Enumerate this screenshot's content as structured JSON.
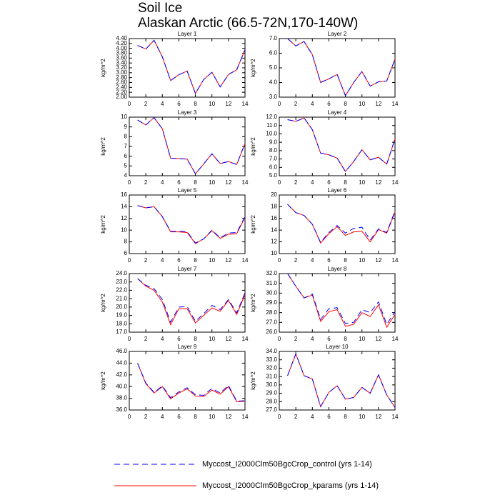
{
  "title": "Soil Ice",
  "subtitle": "Alaskan Arctic (66.5-72N,170-140W)",
  "legend": [
    {
      "name": "Myccost_I2000Clm50BgcCrop_control (yrs 1-14)",
      "color": "#0000ff",
      "style": "dashed"
    },
    {
      "name": "Myccost_I2000Clm50BgcCrop_kparams (yrs 1-14)",
      "color": "#ff0000",
      "style": "solid"
    }
  ],
  "chart_data": [
    {
      "type": "line",
      "title": "Layer 1",
      "y_label": "kg/m^2",
      "x": [
        1,
        2,
        3,
        4,
        5,
        6,
        7,
        8,
        9,
        10,
        11,
        12,
        13,
        14
      ],
      "xlim": [
        0,
        14
      ],
      "xticks": [
        0,
        2,
        4,
        6,
        8,
        10,
        12,
        14
      ],
      "ylim": [
        2,
        4.4
      ],
      "yticks": [
        {
          "value": 2,
          "label": "2.00"
        },
        {
          "value": 2.2,
          "label": "2.20"
        },
        {
          "value": 2.4,
          "label": "2.40"
        },
        {
          "value": 2.6,
          "label": "2.60"
        },
        {
          "value": 2.8,
          "label": "2.80"
        },
        {
          "value": 3,
          "label": "3.00"
        },
        {
          "value": 3.2,
          "label": "3.20"
        },
        {
          "value": 3.4,
          "label": "3.40"
        },
        {
          "value": 3.6,
          "label": "3.60"
        },
        {
          "value": 3.8,
          "label": "3.80"
        },
        {
          "value": 4,
          "label": "4.00"
        },
        {
          "value": 4.2,
          "label": "4.20"
        },
        {
          "value": 4.4,
          "label": "4.40"
        }
      ],
      "series": [
        {
          "values": [
            4.12,
            3.97,
            4.33,
            3.65,
            2.68,
            2.92,
            3.07,
            2.15,
            2.72,
            3.02,
            2.42,
            2.93,
            3.12,
            3.95
          ]
        },
        {
          "values": [
            4.12,
            3.97,
            4.33,
            3.65,
            2.68,
            2.92,
            3.07,
            2.15,
            2.72,
            3.02,
            2.42,
            2.93,
            3.12,
            3.95
          ]
        }
      ]
    },
    {
      "type": "line",
      "title": "Layer 2",
      "y_label": "kg/m^2",
      "x": [
        1,
        2,
        3,
        4,
        5,
        6,
        7,
        8,
        9,
        10,
        11,
        12,
        13,
        14
      ],
      "xlim": [
        0,
        14
      ],
      "xticks": [
        0,
        2,
        4,
        6,
        8,
        10,
        12,
        14
      ],
      "ylim": [
        3,
        7
      ],
      "yticks": [
        {
          "value": 3,
          "label": "3.0"
        },
        {
          "value": 4,
          "label": "4.0"
        },
        {
          "value": 5,
          "label": "5.0"
        },
        {
          "value": 6,
          "label": "6.0"
        },
        {
          "value": 7,
          "label": "7.0"
        }
      ],
      "series": [
        {
          "values": [
            7.0,
            6.5,
            6.8,
            5.9,
            4.0,
            4.25,
            4.55,
            3.1,
            4.0,
            4.75,
            3.75,
            4.05,
            4.1,
            5.6
          ]
        },
        {
          "values": [
            7.0,
            6.5,
            6.8,
            5.9,
            4.0,
            4.25,
            4.55,
            3.1,
            4.0,
            4.75,
            3.75,
            4.05,
            4.1,
            5.6
          ]
        }
      ]
    },
    {
      "type": "line",
      "title": "Layer 3",
      "y_label": "kg/m^2",
      "x": [
        1,
        2,
        3,
        4,
        5,
        6,
        7,
        8,
        9,
        10,
        11,
        12,
        13,
        14
      ],
      "xlim": [
        0,
        14
      ],
      "xticks": [
        0,
        2,
        4,
        6,
        8,
        10,
        12,
        14
      ],
      "ylim": [
        4,
        10
      ],
      "yticks": [
        4,
        5,
        6,
        7,
        8,
        9,
        10
      ],
      "series": [
        {
          "values": [
            9.7,
            9.2,
            9.95,
            8.8,
            5.8,
            5.75,
            5.7,
            4.2,
            5.2,
            6.25,
            5.25,
            5.45,
            5.15,
            7.3
          ]
        },
        {
          "values": [
            9.7,
            9.2,
            9.95,
            8.8,
            5.8,
            5.75,
            5.7,
            4.2,
            5.2,
            6.25,
            5.25,
            5.45,
            5.15,
            7.3
          ]
        }
      ]
    },
    {
      "type": "line",
      "title": "Layer 4",
      "y_label": "kg/m^2",
      "x": [
        1,
        2,
        3,
        4,
        5,
        6,
        7,
        8,
        9,
        10,
        11,
        12,
        13,
        14
      ],
      "xlim": [
        0,
        14
      ],
      "xticks": [
        0,
        2,
        4,
        6,
        8,
        10,
        12,
        14
      ],
      "ylim": [
        5,
        12
      ],
      "yticks": [
        {
          "value": 5,
          "label": "5.0"
        },
        {
          "value": 6,
          "label": "6.0"
        },
        {
          "value": 7,
          "label": "7.0"
        },
        {
          "value": 8,
          "label": "8.0"
        },
        {
          "value": 9,
          "label": "9.0"
        },
        {
          "value": 10,
          "label": "10.0"
        },
        {
          "value": 11,
          "label": "11.0"
        },
        {
          "value": 12,
          "label": "12.0"
        }
      ],
      "series": [
        {
          "values": [
            11.7,
            11.5,
            11.9,
            10.5,
            7.7,
            7.5,
            7.1,
            5.5,
            6.7,
            8.1,
            6.9,
            7.2,
            6.4,
            9.4
          ]
        },
        {
          "values": [
            11.7,
            11.5,
            11.9,
            10.5,
            7.7,
            7.5,
            7.1,
            5.5,
            6.7,
            8.1,
            6.9,
            7.2,
            6.4,
            9.4
          ]
        }
      ]
    },
    {
      "type": "line",
      "title": "Layer 5",
      "y_label": "kg/m^2",
      "x": [
        1,
        2,
        3,
        4,
        5,
        6,
        7,
        8,
        9,
        10,
        11,
        12,
        13,
        14
      ],
      "xlim": [
        0,
        14
      ],
      "xticks": [
        0,
        2,
        4,
        6,
        8,
        10,
        12,
        14
      ],
      "ylim": [
        6,
        16
      ],
      "yticks": [
        6,
        8,
        10,
        12,
        14,
        16
      ],
      "series": [
        {
          "values": [
            14.2,
            13.8,
            14.0,
            12.3,
            9.8,
            9.8,
            9.75,
            7.8,
            8.5,
            10.0,
            8.7,
            9.5,
            9.6,
            12.3
          ]
        },
        {
          "values": [
            14.2,
            13.8,
            14.0,
            12.3,
            9.7,
            9.7,
            9.6,
            7.7,
            8.5,
            9.9,
            8.6,
            9.3,
            9.4,
            12.2
          ]
        }
      ]
    },
    {
      "type": "line",
      "title": "Layer 6",
      "y_label": "kg/m^2",
      "x": [
        1,
        2,
        3,
        4,
        5,
        6,
        7,
        8,
        9,
        10,
        11,
        12,
        13,
        14
      ],
      "xlim": [
        0,
        14
      ],
      "xticks": [
        0,
        2,
        4,
        6,
        8,
        10,
        12,
        14
      ],
      "ylim": [
        10,
        20
      ],
      "yticks": [
        10,
        12,
        14,
        16,
        18,
        20
      ],
      "series": [
        {
          "values": [
            18.4,
            17.0,
            16.5,
            15.0,
            11.9,
            13.6,
            14.8,
            13.5,
            14.3,
            14.5,
            12.3,
            14.2,
            13.6,
            17.3
          ]
        },
        {
          "values": [
            18.4,
            17.0,
            16.5,
            15.0,
            11.8,
            13.4,
            14.6,
            13.1,
            13.7,
            13.8,
            12.0,
            14.1,
            13.5,
            17.1
          ]
        }
      ]
    },
    {
      "type": "line",
      "title": "Layer 7",
      "y_label": "kg/m^2",
      "x": [
        1,
        2,
        3,
        4,
        5,
        6,
        7,
        8,
        9,
        10,
        11,
        12,
        13,
        14
      ],
      "xlim": [
        0,
        14
      ],
      "xticks": [
        0,
        2,
        4,
        6,
        8,
        10,
        12,
        14
      ],
      "ylim": [
        17,
        24
      ],
      "yticks": [
        {
          "value": 17,
          "label": "17.0"
        },
        {
          "value": 18,
          "label": "18.0"
        },
        {
          "value": 19,
          "label": "19.0"
        },
        {
          "value": 20,
          "label": "20.0"
        },
        {
          "value": 21,
          "label": "21.0"
        },
        {
          "value": 22,
          "label": "22.0"
        },
        {
          "value": 23,
          "label": "23.0"
        },
        {
          "value": 24,
          "label": "24.0"
        }
      ],
      "series": [
        {
          "values": [
            23.4,
            22.6,
            22.2,
            20.9,
            18.2,
            20.0,
            20.05,
            18.3,
            19.2,
            20.2,
            19.7,
            20.9,
            19.3,
            21.7
          ]
        },
        {
          "values": [
            23.4,
            22.5,
            22.0,
            20.6,
            17.9,
            19.8,
            19.8,
            18.1,
            19.0,
            19.9,
            19.5,
            20.8,
            19.1,
            21.5
          ]
        }
      ]
    },
    {
      "type": "line",
      "title": "Layer 8",
      "y_label": "kg/m^2",
      "x": [
        1,
        2,
        3,
        4,
        5,
        6,
        7,
        8,
        9,
        10,
        11,
        12,
        13,
        14
      ],
      "xlim": [
        0,
        14
      ],
      "xticks": [
        0,
        2,
        4,
        6,
        8,
        10,
        12,
        14
      ],
      "ylim": [
        26,
        32
      ],
      "yticks": [
        {
          "value": 26,
          "label": "26.0"
        },
        {
          "value": 27,
          "label": "27.0"
        },
        {
          "value": 28,
          "label": "28.0"
        },
        {
          "value": 29,
          "label": "29.0"
        },
        {
          "value": 30,
          "label": "30.0"
        },
        {
          "value": 31,
          "label": "31.0"
        },
        {
          "value": 32,
          "label": "32.0"
        }
      ],
      "series": [
        {
          "values": [
            32.0,
            30.7,
            29.5,
            29.9,
            27.3,
            28.4,
            28.5,
            26.9,
            27.0,
            28.3,
            28.0,
            29.1,
            26.8,
            28.1
          ]
        },
        {
          "values": [
            32.0,
            30.7,
            29.5,
            29.8,
            27.1,
            28.1,
            28.3,
            26.6,
            26.8,
            28.0,
            27.6,
            28.8,
            26.5,
            27.8
          ]
        }
      ]
    },
    {
      "type": "line",
      "title": "Layer 9",
      "y_label": "kg/m^2",
      "x": [
        1,
        2,
        3,
        4,
        5,
        6,
        7,
        8,
        9,
        10,
        11,
        12,
        13,
        14
      ],
      "xlim": [
        0,
        14
      ],
      "xticks": [
        0,
        2,
        4,
        6,
        8,
        10,
        12,
        14
      ],
      "ylim": [
        36,
        46
      ],
      "yticks": [
        {
          "value": 36,
          "label": "36.0"
        },
        {
          "value": 38,
          "label": "38.0"
        },
        {
          "value": 40,
          "label": "40.0"
        },
        {
          "value": 42,
          "label": "42.0"
        },
        {
          "value": 44,
          "label": "44.0"
        },
        {
          "value": 46,
          "label": "46.0"
        }
      ],
      "series": [
        {
          "values": [
            44.0,
            40.6,
            39.0,
            40.1,
            38.1,
            39.1,
            39.8,
            38.6,
            38.5,
            39.7,
            38.9,
            40.2,
            37.5,
            37.6
          ]
        },
        {
          "values": [
            44.0,
            40.5,
            38.9,
            40.0,
            37.9,
            38.9,
            39.6,
            38.4,
            38.3,
            39.4,
            38.7,
            40.0,
            37.4,
            37.5
          ]
        }
      ]
    },
    {
      "type": "line",
      "title": "Layer 10",
      "y_label": "kg/m^2",
      "x": [
        1,
        2,
        3,
        4,
        5,
        6,
        7,
        8,
        9,
        10,
        11,
        12,
        13,
        14
      ],
      "xlim": [
        0,
        14
      ],
      "xticks": [
        0,
        2,
        4,
        6,
        8,
        10,
        12,
        14
      ],
      "ylim": [
        27,
        34
      ],
      "yticks": [
        {
          "value": 27,
          "label": "27.0"
        },
        {
          "value": 28,
          "label": "28.0"
        },
        {
          "value": 29,
          "label": "29.0"
        },
        {
          "value": 30,
          "label": "30.0"
        },
        {
          "value": 31,
          "label": "31.0"
        },
        {
          "value": 32,
          "label": "32.0"
        },
        {
          "value": 33,
          "label": "33.0"
        },
        {
          "value": 34,
          "label": "34.0"
        }
      ],
      "series": [
        {
          "values": [
            31.1,
            33.7,
            31.1,
            30.7,
            27.4,
            29.1,
            29.9,
            28.3,
            28.5,
            29.7,
            29.0,
            31.2,
            28.8,
            27.3
          ]
        },
        {
          "values": [
            31.1,
            33.7,
            31.1,
            30.7,
            27.4,
            29.1,
            29.9,
            28.3,
            28.5,
            29.7,
            29.0,
            31.2,
            28.8,
            27.3
          ]
        }
      ]
    }
  ]
}
